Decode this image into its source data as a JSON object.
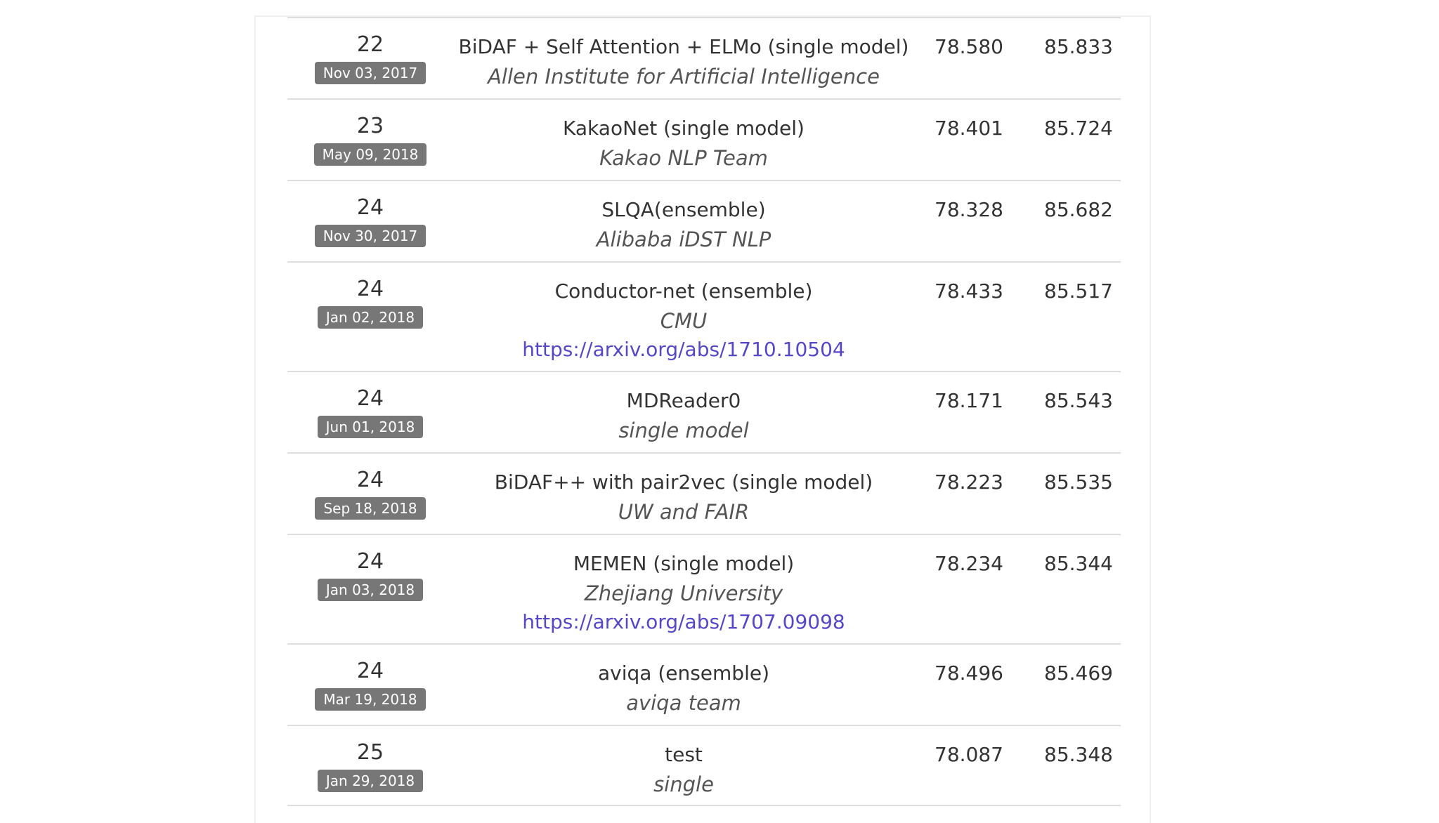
{
  "leaderboard": {
    "rows": [
      {
        "rank": "22",
        "date": "Nov 03, 2017",
        "model": "BiDAF + Self Attention + ELMo (single model)",
        "org": "Allen Institute for Artificial Intelligence",
        "link": "",
        "em": "78.580",
        "f1": "85.833"
      },
      {
        "rank": "23",
        "date": "May 09, 2018",
        "model": "KakaoNet (single model)",
        "org": "Kakao NLP Team",
        "link": "",
        "em": "78.401",
        "f1": "85.724"
      },
      {
        "rank": "24",
        "date": "Nov 30, 2017",
        "model": "SLQA(ensemble)",
        "org": "Alibaba iDST NLP",
        "link": "",
        "em": "78.328",
        "f1": "85.682"
      },
      {
        "rank": "24",
        "date": "Jan 02, 2018",
        "model": "Conductor-net (ensemble)",
        "org": "CMU",
        "link": "https://arxiv.org/abs/1710.10504",
        "em": "78.433",
        "f1": "85.517"
      },
      {
        "rank": "24",
        "date": "Jun 01, 2018",
        "model": "MDReader0",
        "org": "single model",
        "link": "",
        "em": "78.171",
        "f1": "85.543"
      },
      {
        "rank": "24",
        "date": "Sep 18, 2018",
        "model": "BiDAF++ with pair2vec (single model)",
        "org": "UW and FAIR",
        "link": "",
        "em": "78.223",
        "f1": "85.535"
      },
      {
        "rank": "24",
        "date": "Jan 03, 2018",
        "model": "MEMEN (single model)",
        "org": "Zhejiang University",
        "link": "https://arxiv.org/abs/1707.09098",
        "em": "78.234",
        "f1": "85.344"
      },
      {
        "rank": "24",
        "date": "Mar 19, 2018",
        "model": "aviqa (ensemble)",
        "org": "aviqa team",
        "link": "",
        "em": "78.496",
        "f1": "85.469"
      },
      {
        "rank": "25",
        "date": "Jan 29, 2018",
        "model": "test",
        "org": "single",
        "link": "",
        "em": "78.087",
        "f1": "85.348"
      }
    ]
  },
  "colors": {
    "badge_bg": "#777777",
    "link": "#5548c8",
    "row_border": "#dddddd"
  }
}
